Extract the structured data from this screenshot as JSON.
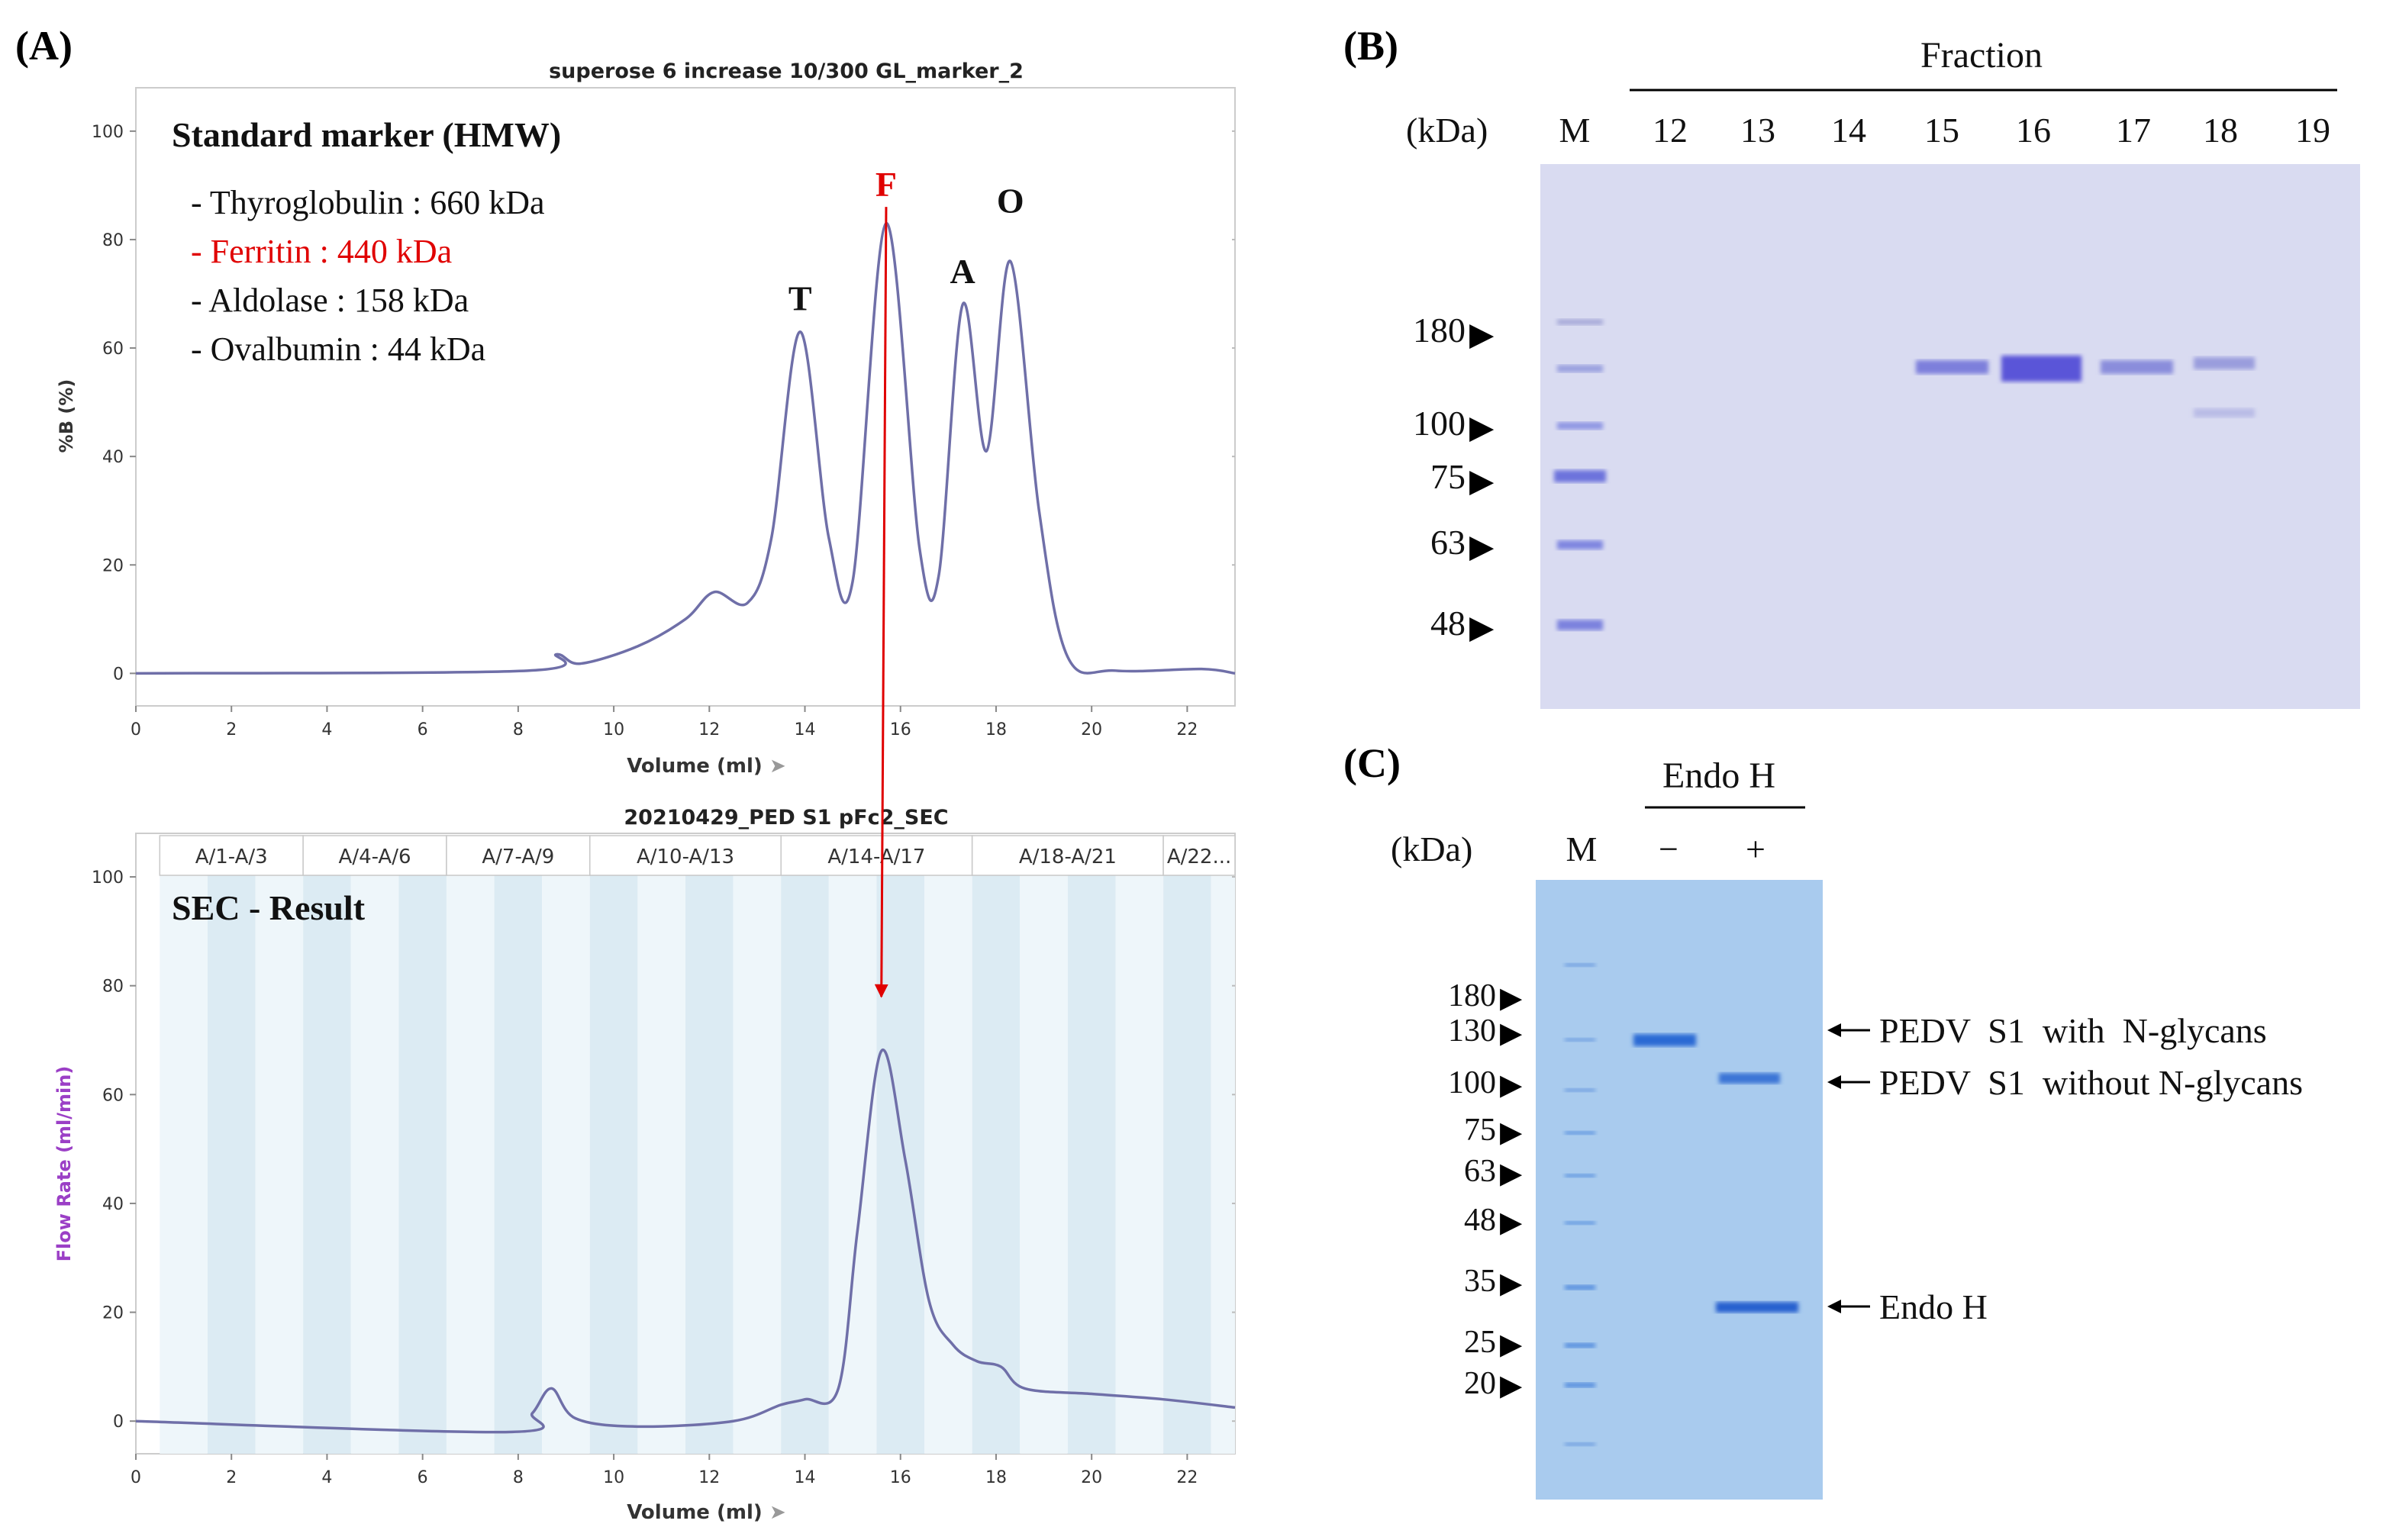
{
  "panels": {
    "A": "(A)",
    "B": "(B)",
    "C": "(C)"
  },
  "colors": {
    "line": "#6f6fa8",
    "red": "#e00000",
    "flow_label": "#9b3fc6",
    "frac_light": "#eef6fa",
    "frac_dark": "#dcebf3",
    "gel_b": "#d9dbf1",
    "gel_c": "#a9cbee"
  },
  "chart_data": [
    {
      "type": "line",
      "title": "superose 6 increase 10/300 GL_marker_2",
      "xlabel": "Volume (ml)",
      "ylabel": "%B (%)",
      "xlim": [
        0,
        23
      ],
      "ylim": [
        -6,
        108
      ],
      "xticks": [
        0,
        2,
        4,
        6,
        8,
        10,
        12,
        14,
        16,
        18,
        20,
        22
      ],
      "yticks": [
        0,
        20,
        40,
        60,
        80,
        100
      ],
      "grid": false,
      "series": [
        {
          "name": "Standard marker (HMW)",
          "x": [
            0,
            8.2,
            8.8,
            9.3,
            10.5,
            11.5,
            12.1,
            12.8,
            13.3,
            13.9,
            14.5,
            15.0,
            15.7,
            16.4,
            16.8,
            17.3,
            17.8,
            18.3,
            18.9,
            19.5,
            20.5,
            22.3,
            23
          ],
          "y": [
            0,
            0.5,
            3.5,
            1.8,
            5,
            10,
            15,
            13,
            25,
            63,
            25,
            17,
            83,
            23,
            18,
            68,
            41,
            76,
            30,
            3,
            0.5,
            0.8,
            0
          ]
        }
      ],
      "peak_labels": [
        {
          "label": "T",
          "x": 13.9,
          "y": 67
        },
        {
          "label": "F",
          "x": 15.7,
          "y": 88
        },
        {
          "label": "A",
          "x": 17.3,
          "y": 72
        },
        {
          "label": "O",
          "x": 18.3,
          "y": 85
        }
      ],
      "legend": {
        "title": "Standard marker (HMW)",
        "items": [
          "- Thyroglobulin : 660 kDa",
          "- Ferritin : 440 kDa",
          "- Aldolase : 158 kDa",
          "- Ovalbumin : 44 kDa"
        ]
      }
    },
    {
      "type": "line",
      "title": "20210429_PED S1 pFc2_SEC",
      "xlabel": "Volume (ml)",
      "ylabel": "Flow Rate (ml/min)",
      "xlim": [
        0,
        23
      ],
      "ylim": [
        -6,
        108
      ],
      "xticks": [
        0,
        2,
        4,
        6,
        8,
        10,
        12,
        14,
        16,
        18,
        20,
        22
      ],
      "yticks": [
        0,
        20,
        40,
        60,
        80,
        100
      ],
      "annotation": "SEC - Result",
      "series": [
        {
          "name": "SEC",
          "x": [
            0,
            7.8,
            8.3,
            8.7,
            9.2,
            10.5,
            12.5,
            13.5,
            14.0,
            14.7,
            15.1,
            15.6,
            16.1,
            16.6,
            17.1,
            17.6,
            18.1,
            18.6,
            20.0,
            21.5,
            23
          ],
          "y": [
            0,
            -2.0,
            1.5,
            6,
            0.5,
            -1.0,
            0,
            3,
            4,
            6,
            35,
            68,
            48,
            22,
            14,
            11,
            10,
            6,
            5,
            4,
            2.5
          ]
        }
      ],
      "fractions": {
        "labels": [
          "A/1-A/3",
          "A/4-A/6",
          "A/7-A/9",
          "A/10-A/13",
          "A/14-A/17",
          "A/18-A/21",
          "A/22..."
        ],
        "ranges": [
          [
            0.5,
            3.5
          ],
          [
            3.5,
            6.5
          ],
          [
            6.5,
            9.5
          ],
          [
            9.5,
            13.5
          ],
          [
            13.5,
            17.5
          ],
          [
            17.5,
            21.5
          ],
          [
            21.5,
            23
          ]
        ]
      },
      "arrow": {
        "from": "F",
        "to_x": 15.6,
        "to_y": 78
      }
    }
  ],
  "gel_b": {
    "title": "Fraction",
    "kda_label": "(kDa)",
    "lanes": [
      "M",
      "12",
      "13",
      "14",
      "15",
      "16",
      "17",
      "18",
      "19"
    ],
    "markers": [
      "180",
      "100",
      "75",
      "63",
      "48"
    ]
  },
  "gel_c": {
    "title": "Endo H",
    "kda_label": "(kDa)",
    "lanes": [
      "M",
      "−",
      "+"
    ],
    "markers": [
      "180",
      "130",
      "100",
      "75",
      "63",
      "48",
      "35",
      "25",
      "20"
    ],
    "annotations": [
      "PEDV  S1  with  N-glycans",
      "PEDV  S1  without N-glycans",
      "Endo H"
    ]
  }
}
